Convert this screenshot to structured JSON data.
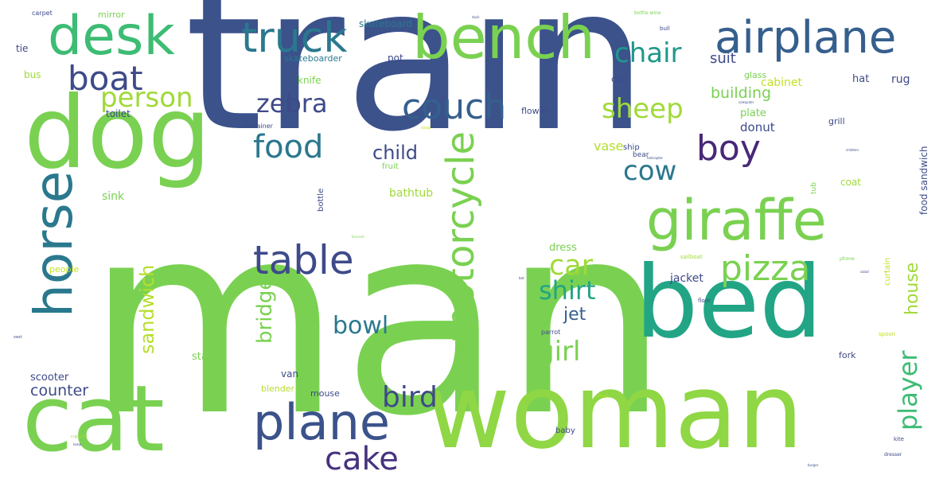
{
  "words": [
    {
      "text": "man",
      "color": "#7ad151",
      "weight": 100
    },
    {
      "text": "train",
      "color": "#3b528b",
      "weight": 95
    },
    {
      "text": "woman",
      "color": "#8fd744",
      "weight": 70
    },
    {
      "text": "dog",
      "color": "#7ad151",
      "weight": 62
    },
    {
      "text": "cat",
      "color": "#7ad151",
      "weight": 60
    },
    {
      "text": "bed",
      "color": "#21a585",
      "weight": 58
    },
    {
      "text": "giraffe",
      "color": "#7ad151",
      "weight": 40
    },
    {
      "text": "bench",
      "color": "#7ad151",
      "weight": 38
    },
    {
      "text": "desk",
      "color": "#3dbc74",
      "weight": 36
    },
    {
      "text": "horse",
      "color": "#2a788e",
      "weight": 36
    },
    {
      "text": "airplane",
      "color": "#355f8d",
      "weight": 32
    },
    {
      "text": "plane",
      "color": "#3b528b",
      "weight": 28
    },
    {
      "text": "truck",
      "color": "#2a788e",
      "weight": 27
    },
    {
      "text": "motorcycle",
      "color": "#7ad151",
      "weight": 26
    },
    {
      "text": "table",
      "color": "#3e4a89",
      "weight": 26
    },
    {
      "text": "pizza",
      "color": "#7ad151",
      "weight": 24
    },
    {
      "text": "cake",
      "color": "#46327e",
      "weight": 22
    },
    {
      "text": "couch",
      "color": "#355f8d",
      "weight": 22
    },
    {
      "text": "boy",
      "color": "#482878",
      "weight": 20
    },
    {
      "text": "boat",
      "color": "#3e4a89",
      "weight": 20
    },
    {
      "text": "food",
      "color": "#2a788e",
      "weight": 20
    },
    {
      "text": "player",
      "color": "#3dbc74",
      "weight": 18
    },
    {
      "text": "chair",
      "color": "#1f988b",
      "weight": 18
    },
    {
      "text": "car",
      "color": "#a0da39",
      "weight": 18
    },
    {
      "text": "person",
      "color": "#a0da39",
      "weight": 18
    },
    {
      "text": "sheep",
      "color": "#a0da39",
      "weight": 18
    },
    {
      "text": "cow",
      "color": "#2a788e",
      "weight": 18
    },
    {
      "text": "zebra",
      "color": "#3e4a89",
      "weight": 18
    },
    {
      "text": "bird",
      "color": "#3e4a89",
      "weight": 17
    },
    {
      "text": "shirt",
      "color": "#21a585",
      "weight": 17
    },
    {
      "text": "girl",
      "color": "#7ad151",
      "weight": 17
    },
    {
      "text": "bowl",
      "color": "#2a788e",
      "weight": 16
    },
    {
      "text": "sandwich",
      "color": "#b5de2b",
      "weight": 14
    },
    {
      "text": "bridge",
      "color": "#7ad151",
      "weight": 14
    },
    {
      "text": "house",
      "color": "#a0da39",
      "weight": 12
    },
    {
      "text": "child",
      "color": "#3e4a89",
      "weight": 12
    },
    {
      "text": "jet",
      "color": "#355f8d",
      "weight": 12
    },
    {
      "text": "counter",
      "color": "#3e4a89",
      "weight": 11
    },
    {
      "text": "building",
      "color": "#7ad151",
      "weight": 10
    },
    {
      "text": "suit",
      "color": "#3e4a89",
      "weight": 10
    },
    {
      "text": "donut",
      "color": "#3e4a89",
      "weight": 9
    },
    {
      "text": "vase",
      "color": "#b5de2b",
      "weight": 9
    },
    {
      "text": "dress",
      "color": "#7ad151",
      "weight": 8
    },
    {
      "text": "jacket",
      "color": "#3e4a89",
      "weight": 8
    },
    {
      "text": "plate",
      "color": "#7ad151",
      "weight": 7
    },
    {
      "text": "rug",
      "color": "#3e4a89",
      "weight": 7
    },
    {
      "text": "hat",
      "color": "#3e4a89",
      "weight": 7
    },
    {
      "text": "cabinet",
      "color": "#c2df23",
      "weight": 7
    },
    {
      "text": "sink",
      "color": "#7ad151",
      "weight": 7
    },
    {
      "text": "bathtub",
      "color": "#a0da39",
      "weight": 7
    },
    {
      "text": "scooter",
      "color": "#3e4a89",
      "weight": 6
    },
    {
      "text": "statue",
      "color": "#7ad151",
      "weight": 6
    },
    {
      "text": "van",
      "color": "#3e4a89",
      "weight": 6
    },
    {
      "text": "coat",
      "color": "#a0da39",
      "weight": 6
    },
    {
      "text": "food sandwich",
      "color": "#3e4a89",
      "weight": 6
    },
    {
      "text": "skateboard",
      "color": "#2a788e",
      "weight": 5
    },
    {
      "text": "skateboarder",
      "color": "#2a788e",
      "weight": 4
    },
    {
      "text": "bus",
      "color": "#a0da39",
      "weight": 5
    },
    {
      "text": "tie",
      "color": "#3e4a89",
      "weight": 5
    },
    {
      "text": "knife",
      "color": "#7ad151",
      "weight": 5
    },
    {
      "text": "toilet",
      "color": "#3e4a89",
      "weight": 5
    },
    {
      "text": "pot",
      "color": "#3e4a89",
      "weight": 5
    },
    {
      "text": "mirror",
      "color": "#7ad151",
      "weight": 5
    },
    {
      "text": "cup",
      "color": "#3e4a89",
      "weight": 5
    },
    {
      "text": "glass",
      "color": "#7ad151",
      "weight": 5
    },
    {
      "text": "flower",
      "color": "#3e4a89",
      "weight": 5
    },
    {
      "text": "grill",
      "color": "#3e4a89",
      "weight": 5
    },
    {
      "text": "fork",
      "color": "#3e4a89",
      "weight": 5
    },
    {
      "text": "people",
      "color": "#c2df23",
      "weight": 5
    },
    {
      "text": "blender",
      "color": "#b5de2b",
      "weight": 5
    },
    {
      "text": "mouse",
      "color": "#3e4a89",
      "weight": 5
    },
    {
      "text": "fruit",
      "color": "#7ad151",
      "weight": 5
    },
    {
      "text": "bottle",
      "color": "#3e4a89",
      "weight": 5
    },
    {
      "text": "ship",
      "color": "#3e4a89",
      "weight": 4
    },
    {
      "text": "bear",
      "color": "#3e4a89",
      "weight": 4
    },
    {
      "text": "curtain",
      "color": "#c2df23",
      "weight": 5
    },
    {
      "text": "tub",
      "color": "#7ad151",
      "weight": 4
    },
    {
      "text": "baby",
      "color": "#3e4a89",
      "weight": 4
    },
    {
      "text": "container",
      "color": "#3e4a89",
      "weight": 3
    },
    {
      "text": "carpet",
      "color": "#3e4a89",
      "weight": 3
    },
    {
      "text": "parrot",
      "color": "#3e4a89",
      "weight": 3
    },
    {
      "text": "floor",
      "color": "#3e4a89",
      "weight": 3
    },
    {
      "text": "sailboat",
      "color": "#a0da39",
      "weight": 3
    },
    {
      "text": "spoon",
      "color": "#c2df23",
      "weight": 3
    },
    {
      "text": "dresser",
      "color": "#3e4a89",
      "weight": 3
    },
    {
      "text": "kite",
      "color": "#3e4a89",
      "weight": 3
    },
    {
      "text": "bull",
      "color": "#3e4a89",
      "weight": 3
    },
    {
      "text": "bottle wine",
      "color": "#7ad151",
      "weight": 2
    },
    {
      "text": "phone",
      "color": "#7ad151",
      "weight": 2
    },
    {
      "text": "vest",
      "color": "#3e4a89",
      "weight": 2
    },
    {
      "text": "cupcake",
      "color": "#a0da39",
      "weight": 2
    },
    {
      "text": "tower",
      "color": "#7ad151",
      "weight": 2
    },
    {
      "text": "soup",
      "color": "#c2df23",
      "weight": 2
    },
    {
      "text": "helicopter",
      "color": "#3e4a89",
      "weight": 1
    },
    {
      "text": "broccoli",
      "color": "#7ad151",
      "weight": 1
    },
    {
      "text": "burger",
      "color": "#3e4a89",
      "weight": 1
    },
    {
      "text": "duck",
      "color": "#3e4a89",
      "weight": 1
    },
    {
      "text": "lamp",
      "color": "#3e4a89",
      "weight": 1
    },
    {
      "text": "children",
      "color": "#3e4a89",
      "weight": 1
    },
    {
      "text": "computer",
      "color": "#3e4a89",
      "weight": 1
    },
    {
      "text": "salad",
      "color": "#3e4a89",
      "weight": 1
    },
    {
      "text": "bat",
      "color": "#3e4a89",
      "weight": 1
    },
    {
      "text": "animal",
      "color": "#c2df23",
      "weight": 1
    }
  ]
}
